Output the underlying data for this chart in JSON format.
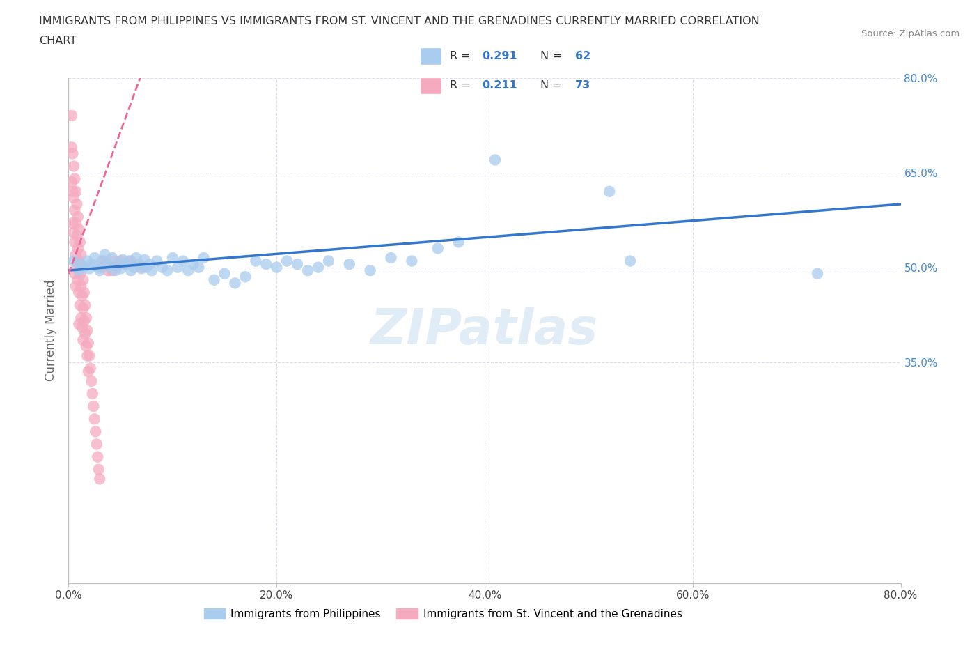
{
  "title_line1": "IMMIGRANTS FROM PHILIPPINES VS IMMIGRANTS FROM ST. VINCENT AND THE GRENADINES CURRENTLY MARRIED CORRELATION",
  "title_line2": "CHART",
  "source_text": "Source: ZipAtlas.com",
  "ylabel": "Currently Married",
  "xlim": [
    0.0,
    0.8
  ],
  "ylim": [
    0.0,
    0.8
  ],
  "xticks": [
    0.0,
    0.2,
    0.4,
    0.6,
    0.8
  ],
  "yticks": [
    0.35,
    0.5,
    0.65,
    0.8
  ],
  "xtick_labels": [
    "0.0%",
    "20.0%",
    "40.0%",
    "60.0%",
    "80.0%"
  ],
  "ytick_labels_right": [
    "35.0%",
    "50.0%",
    "65.0%",
    "80.0%"
  ],
  "blue_color": "#aaccee",
  "pink_color": "#f5aac0",
  "blue_line_color": "#3377cc",
  "pink_line_color": "#ee6699",
  "watermark_color": "#cce0f0",
  "R_blue": 0.291,
  "N_blue": 62,
  "R_pink": 0.211,
  "N_pink": 73,
  "legend_label_blue": "Immigrants from Philippines",
  "legend_label_pink": "Immigrants from St. Vincent and the Grenadines",
  "blue_x": [
    0.005,
    0.01,
    0.012,
    0.015,
    0.018,
    0.02,
    0.022,
    0.025,
    0.028,
    0.03,
    0.032,
    0.035,
    0.038,
    0.04,
    0.042,
    0.045,
    0.048,
    0.05,
    0.052,
    0.055,
    0.058,
    0.06,
    0.063,
    0.065,
    0.068,
    0.07,
    0.073,
    0.075,
    0.078,
    0.08,
    0.085,
    0.09,
    0.095,
    0.1,
    0.105,
    0.11,
    0.115,
    0.12,
    0.125,
    0.13,
    0.14,
    0.15,
    0.16,
    0.17,
    0.18,
    0.19,
    0.2,
    0.21,
    0.22,
    0.23,
    0.24,
    0.25,
    0.27,
    0.29,
    0.31,
    0.33,
    0.355,
    0.375,
    0.52,
    0.72,
    0.54,
    0.41
  ],
  "blue_y": [
    0.51,
    0.495,
    0.505,
    0.5,
    0.51,
    0.498,
    0.505,
    0.515,
    0.5,
    0.495,
    0.51,
    0.52,
    0.505,
    0.5,
    0.515,
    0.495,
    0.505,
    0.498,
    0.512,
    0.505,
    0.51,
    0.495,
    0.5,
    0.515,
    0.505,
    0.498,
    0.512,
    0.5,
    0.505,
    0.495,
    0.51,
    0.5,
    0.495,
    0.515,
    0.5,
    0.51,
    0.495,
    0.505,
    0.5,
    0.515,
    0.48,
    0.49,
    0.475,
    0.485,
    0.51,
    0.505,
    0.5,
    0.51,
    0.505,
    0.495,
    0.5,
    0.51,
    0.505,
    0.495,
    0.515,
    0.51,
    0.53,
    0.54,
    0.62,
    0.49,
    0.51,
    0.67
  ],
  "pink_x": [
    0.003,
    0.003,
    0.003,
    0.004,
    0.004,
    0.004,
    0.005,
    0.005,
    0.005,
    0.006,
    0.006,
    0.006,
    0.006,
    0.007,
    0.007,
    0.007,
    0.007,
    0.008,
    0.008,
    0.008,
    0.009,
    0.009,
    0.009,
    0.01,
    0.01,
    0.01,
    0.01,
    0.011,
    0.011,
    0.011,
    0.012,
    0.012,
    0.012,
    0.013,
    0.013,
    0.013,
    0.014,
    0.014,
    0.014,
    0.015,
    0.015,
    0.016,
    0.016,
    0.017,
    0.017,
    0.018,
    0.018,
    0.019,
    0.019,
    0.02,
    0.021,
    0.022,
    0.023,
    0.024,
    0.025,
    0.026,
    0.027,
    0.028,
    0.029,
    0.03,
    0.032,
    0.034,
    0.036,
    0.038,
    0.04,
    0.042,
    0.044,
    0.046,
    0.048,
    0.05,
    0.055,
    0.06,
    0.07
  ],
  "pink_y": [
    0.74,
    0.69,
    0.635,
    0.68,
    0.62,
    0.57,
    0.66,
    0.61,
    0.555,
    0.64,
    0.59,
    0.54,
    0.49,
    0.62,
    0.57,
    0.52,
    0.47,
    0.6,
    0.55,
    0.5,
    0.58,
    0.53,
    0.48,
    0.56,
    0.51,
    0.46,
    0.41,
    0.54,
    0.49,
    0.44,
    0.52,
    0.47,
    0.42,
    0.5,
    0.455,
    0.405,
    0.48,
    0.435,
    0.385,
    0.46,
    0.415,
    0.44,
    0.395,
    0.42,
    0.375,
    0.4,
    0.36,
    0.38,
    0.335,
    0.36,
    0.34,
    0.32,
    0.3,
    0.28,
    0.26,
    0.24,
    0.22,
    0.2,
    0.18,
    0.165,
    0.5,
    0.51,
    0.505,
    0.495,
    0.5,
    0.495,
    0.51,
    0.5,
    0.505,
    0.51,
    0.505,
    0.51,
    0.5
  ]
}
